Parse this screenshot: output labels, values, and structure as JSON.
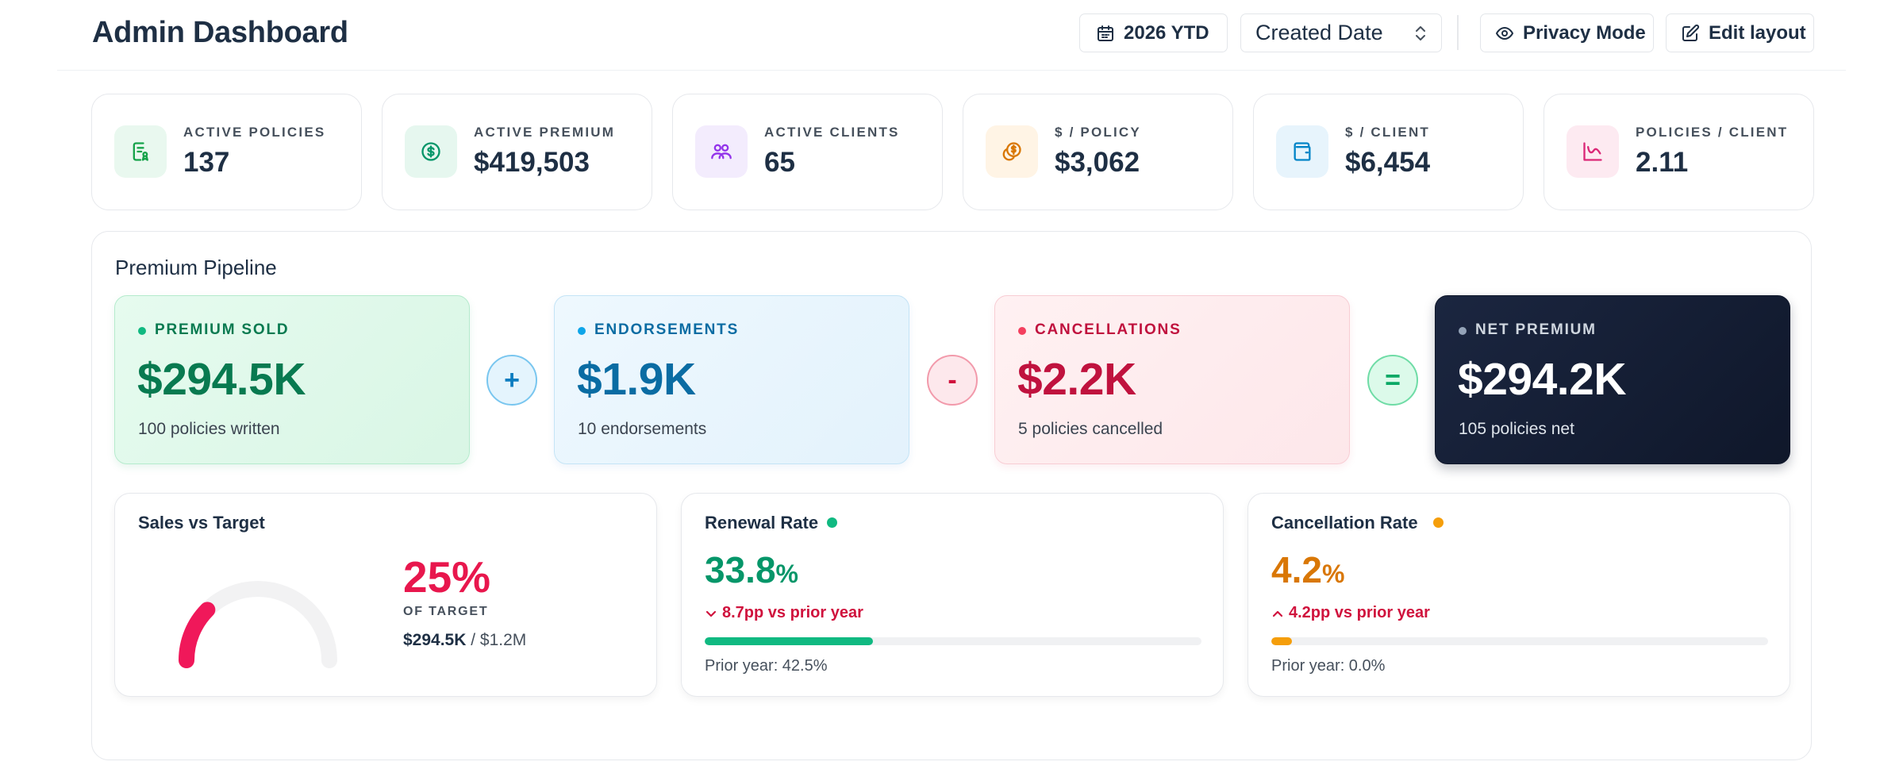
{
  "header": {
    "title": "Admin Dashboard",
    "period_label": "2026 YTD",
    "date_field_select": "Created Date",
    "privacy_label": "Privacy Mode",
    "edit_layout_label": "Edit layout"
  },
  "stats": [
    {
      "label": "ACTIVE POLICIES",
      "value": "137",
      "icon": "policy-doc-icon",
      "accent": "#16a34a",
      "bg": "#e9f8ef"
    },
    {
      "label": "ACTIVE PREMIUM",
      "value": "$419,503",
      "icon": "dollar-circle-icon",
      "accent": "#059669",
      "bg": "#e6f7ef"
    },
    {
      "label": "ACTIVE CLIENTS",
      "value": "65",
      "icon": "users-icon",
      "accent": "#9333ea",
      "bg": "#f3ecfd"
    },
    {
      "label": "$ / POLICY",
      "value": "$3,062",
      "icon": "coins-icon",
      "accent": "#d97706",
      "bg": "#fff4e5"
    },
    {
      "label": "$ / CLIENT",
      "value": "$6,454",
      "icon": "wallet-icon",
      "accent": "#0284c7",
      "bg": "#e7f4fc"
    },
    {
      "label": "POLICIES / CLIENT",
      "value": "2.11",
      "icon": "line-chart-icon",
      "accent": "#db2777",
      "bg": "#fdeaf1"
    }
  ],
  "pipeline": {
    "title": "Premium Pipeline",
    "sold": {
      "label": "PREMIUM SOLD",
      "value": "$294.5K",
      "sub": "100 policies written"
    },
    "endorsements": {
      "label": "ENDORSEMENTS",
      "value": "$1.9K",
      "sub": "10 endorsements"
    },
    "cancellations": {
      "label": "CANCELLATIONS",
      "value": "$2.2K",
      "sub": "5 policies cancelled"
    },
    "net": {
      "label": "NET PREMIUM",
      "value": "$294.2K",
      "sub": "105 policies net"
    },
    "ops": {
      "plus": "+",
      "minus": "-",
      "equals": "="
    }
  },
  "sales_target": {
    "title": "Sales vs Target",
    "percent": "25%",
    "percent_value": 0.25,
    "of_target": "OF TARGET",
    "sold": "$294.5K",
    "separator": " / ",
    "target": "$1.2M"
  },
  "renewal": {
    "title": "Renewal Rate",
    "value": "33.8",
    "suffix": "%",
    "delta": "8.7pp vs prior year",
    "delta_direction": "down",
    "progress": 0.338,
    "prior": "Prior year: 42.5%",
    "color": "#10b981"
  },
  "cancellation": {
    "title": "Cancellation Rate",
    "value": "4.2",
    "suffix": "%",
    "delta": "4.2pp vs prior year",
    "delta_direction": "up",
    "progress": 0.042,
    "prior": "Prior year: 0.0%",
    "color": "#f59e0b"
  }
}
